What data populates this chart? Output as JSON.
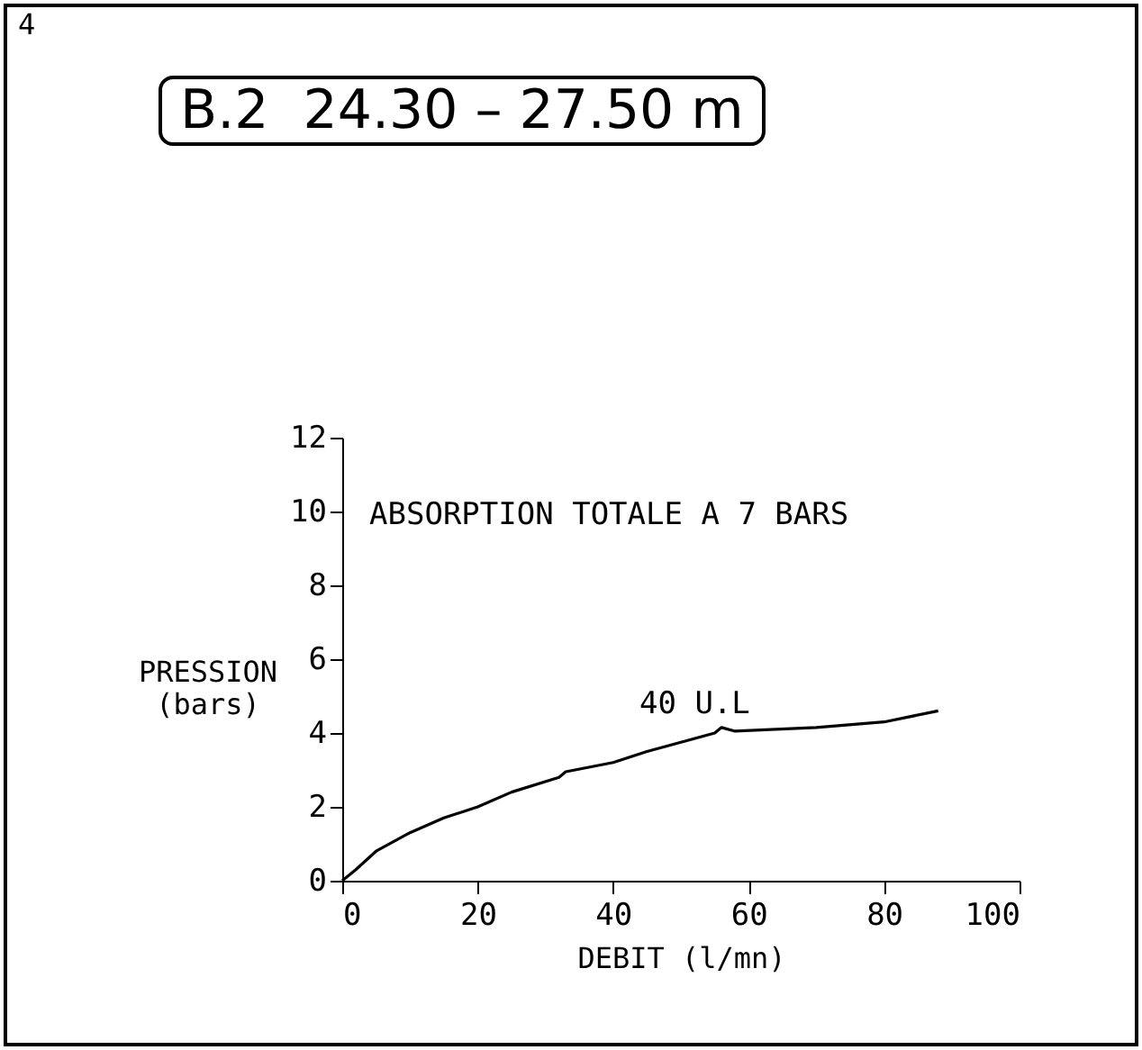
{
  "chart_data": {
    "type": "line",
    "title": "B.2  24.30 – 27.50 m",
    "xlabel": "DEBIT (l/mn)",
    "ylabel": "PRESSION (bars)",
    "annotations": [
      "4",
      "ABSORPTION TOTALE A 7 BARS",
      "40 U.L"
    ],
    "x": [
      0,
      2,
      5,
      10,
      15,
      20,
      25,
      32,
      33,
      40,
      45,
      50,
      55,
      56,
      58,
      70,
      80,
      88
    ],
    "series": [
      {
        "color": "#000000",
        "values": [
          0,
          0.3,
          0.8,
          1.3,
          1.7,
          2.0,
          2.4,
          2.8,
          2.95,
          3.2,
          3.5,
          3.75,
          4.0,
          4.15,
          4.05,
          4.15,
          4.3,
          4.6
        ]
      }
    ],
    "xlim": [
      0,
      100
    ],
    "xticks": [
      0,
      20,
      40,
      60,
      80,
      100
    ],
    "ylim": [
      0,
      12
    ],
    "yticks": [
      0,
      2,
      4,
      6,
      8,
      10,
      12
    ],
    "grid": false,
    "marker": "none",
    "line_style": "solid"
  }
}
